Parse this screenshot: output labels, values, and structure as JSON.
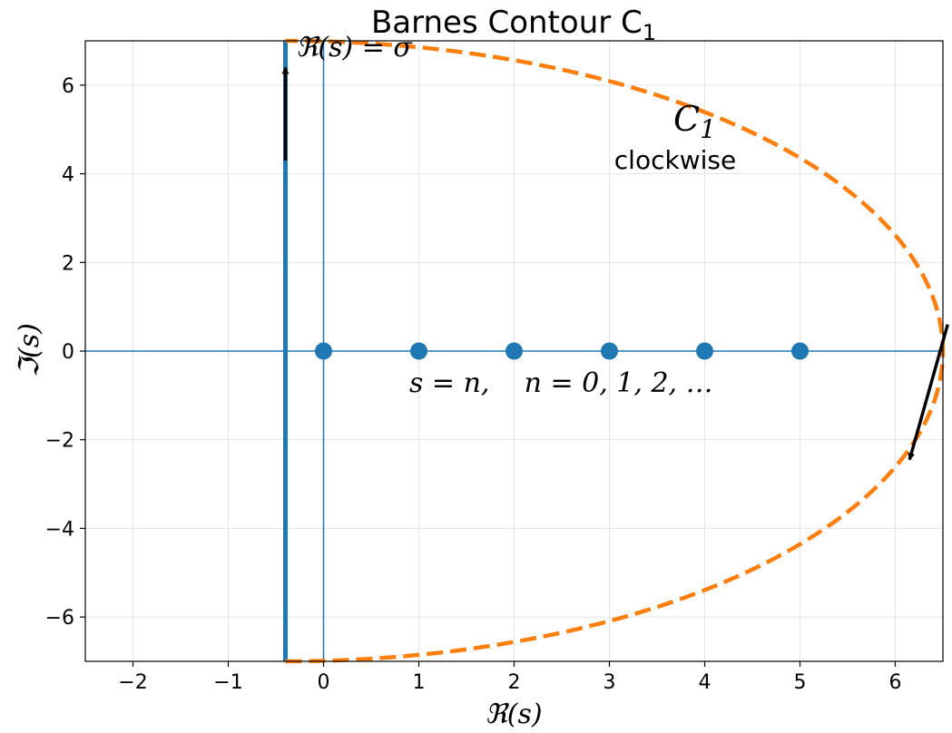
{
  "chart_data": {
    "type": "scatter",
    "title": "Barnes Contour C",
    "title_subscript": "1",
    "xlabel": "ℜ(s)",
    "ylabel": "ℑ(s)",
    "xlim": [
      -2.5,
      6.5
    ],
    "ylim": [
      -7,
      7
    ],
    "xticks": [
      -2,
      -1,
      0,
      1,
      2,
      3,
      4,
      5,
      6
    ],
    "yticks": [
      -6,
      -4,
      -2,
      0,
      2,
      4,
      6
    ],
    "xtick_labels": [
      "−2",
      "−1",
      "0",
      "1",
      "2",
      "3",
      "4",
      "5",
      "6"
    ],
    "ytick_labels": [
      "−6",
      "−4",
      "−2",
      "0",
      "2",
      "4",
      "6"
    ],
    "grid": true,
    "colors": {
      "blue": "#1f77b4",
      "orange": "#ff7f0e",
      "arrow": "#000000"
    },
    "poles": {
      "x": [
        0,
        1,
        2,
        3,
        4,
        5
      ],
      "y": [
        0,
        0,
        0,
        0,
        0,
        0
      ]
    },
    "vertical_line": {
      "x": -0.4,
      "y_range": [
        -7,
        7
      ]
    },
    "reference_lines": {
      "horizontal_y": 0,
      "vertical_x": 0
    },
    "contour": {
      "center_x": -0.4,
      "semi_axis_x": 6.9,
      "semi_axis_y": 7,
      "style": "dashed"
    },
    "annotations": {
      "line_label": "ℜ(s) = σ",
      "contour_label": "C",
      "contour_label_subscript": "1",
      "direction_label": "clockwise",
      "poles_label": "s = n,    n = 0, 1, 2, …"
    },
    "arrows": [
      {
        "from": [
          -0.4,
          4.3
        ],
        "to": [
          -0.4,
          6.4
        ]
      },
      {
        "from": [
          6.55,
          0.6
        ],
        "to": [
          6.15,
          -2.45
        ]
      }
    ]
  }
}
